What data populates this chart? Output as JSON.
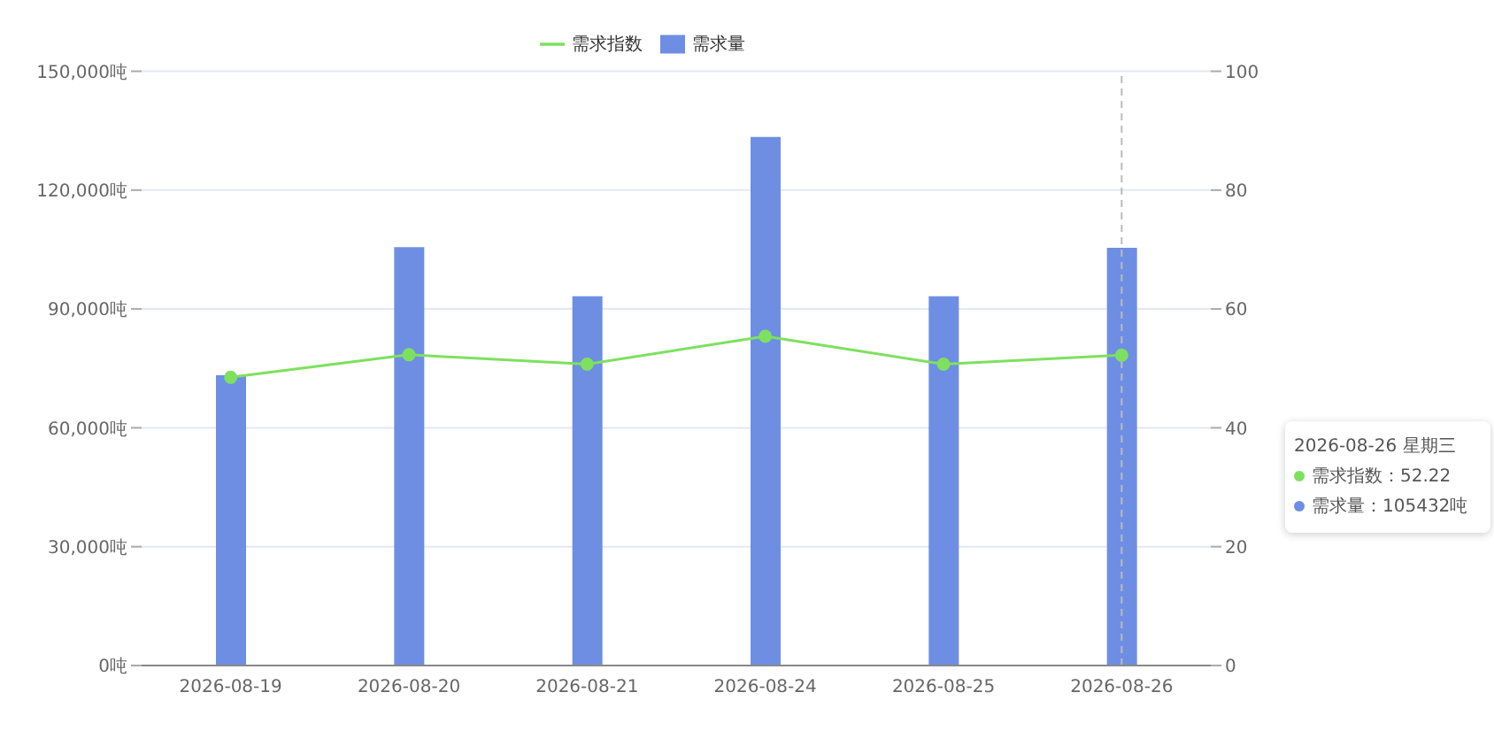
{
  "chart_data": {
    "type": "bar",
    "categories": [
      "2026-08-19",
      "2026-08-20",
      "2026-08-21",
      "2026-08-24",
      "2026-08-25",
      "2026-08-26"
    ],
    "series": [
      {
        "name": "需求指数",
        "type": "line",
        "axis": "y2",
        "color": "#7ee05f",
        "marker": "circle",
        "values": [
          48.5,
          52.3,
          50.7,
          55.4,
          50.7,
          52.22
        ]
      },
      {
        "name": "需求量",
        "color": "#6d8ee3",
        "values": [
          73300,
          105600,
          93200,
          133400,
          93200,
          105432
        ]
      }
    ],
    "ylim": [
      0,
      150000
    ],
    "yticks": [
      {
        "value": 0,
        "label": "0吨"
      },
      {
        "value": 30000,
        "label": "30,000吨"
      },
      {
        "value": 60000,
        "label": "60,000吨"
      },
      {
        "value": 90000,
        "label": "90,000吨"
      },
      {
        "value": 120000,
        "label": "120,000吨"
      },
      {
        "value": 150000,
        "label": "150,000吨"
      }
    ],
    "y2lim": [
      0,
      100
    ],
    "y2ticks": [
      0,
      20,
      40,
      60,
      80,
      100
    ],
    "grid": "y",
    "legend": "top",
    "ref_lines": [
      {
        "axis": "x",
        "value": "2026-08-26",
        "color": "#bbbbbb",
        "line_style": "dashed"
      }
    ],
    "annotations": [
      "2026-08-26 星期三",
      "需求指数：52.22",
      "需求量：105432吨"
    ]
  }
}
